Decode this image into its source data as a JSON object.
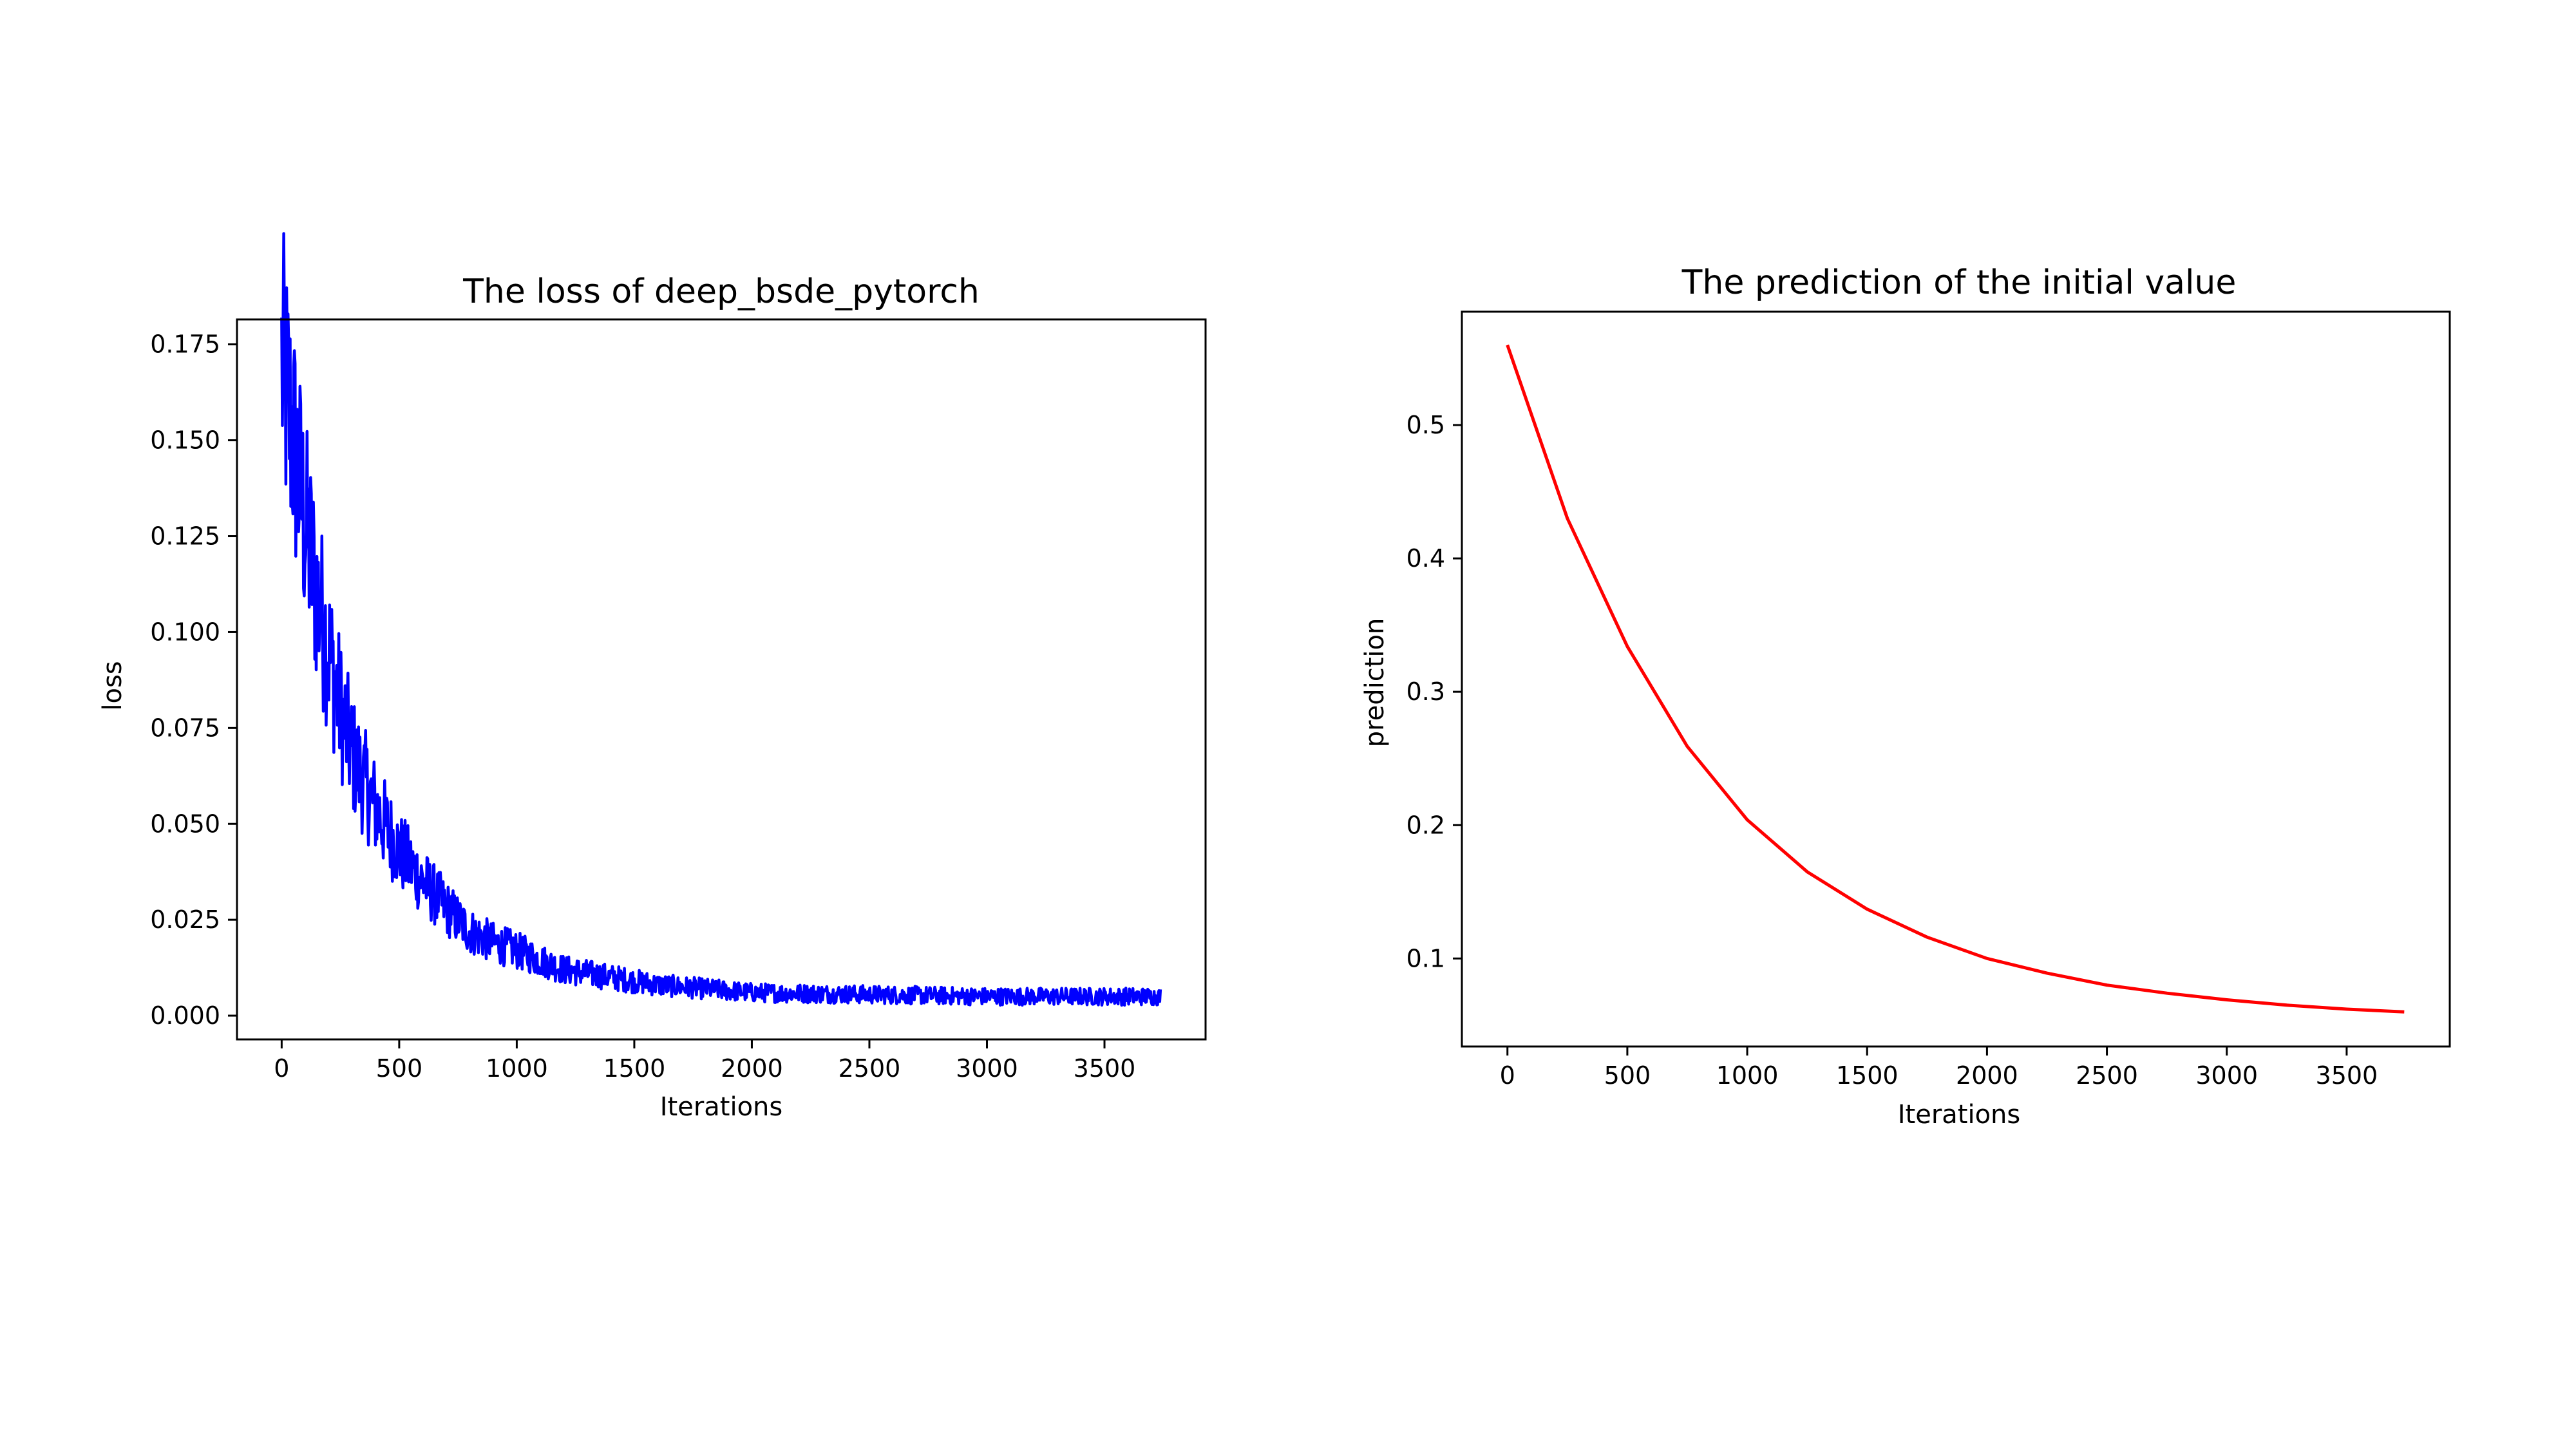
{
  "chart_data": [
    {
      "type": "line",
      "title": "The loss of deep_bsde_pytorch",
      "xlabel": "Iterations",
      "ylabel": "loss",
      "xlim": [
        -190,
        3930
      ],
      "ylim": [
        -0.0062,
        0.1815
      ],
      "xticks": [
        0,
        500,
        1000,
        1500,
        2000,
        2500,
        3000,
        3500
      ],
      "xtick_labels": [
        "0",
        "500",
        "1000",
        "1500",
        "2000",
        "2500",
        "3000",
        "3500"
      ],
      "yticks": [
        0.0,
        0.025,
        0.05,
        0.075,
        0.1,
        0.125,
        0.15,
        0.175
      ],
      "ytick_labels": [
        "0.000",
        "0.025",
        "0.050",
        "0.075",
        "0.100",
        "0.125",
        "0.150",
        "0.175"
      ],
      "grid": false,
      "series": [
        {
          "color": "#0000ff",
          "x": [
            0,
            50,
            100,
            150,
            200,
            250,
            300,
            400,
            500,
            600,
            700,
            800,
            900,
            1000,
            1200,
            1400,
            1600,
            1800,
            2000,
            2500,
            3000,
            3500,
            3740
          ],
          "y": [
            0.17,
            0.15,
            0.128,
            0.11,
            0.095,
            0.08,
            0.068,
            0.054,
            0.043,
            0.035,
            0.028,
            0.022,
            0.019,
            0.017,
            0.012,
            0.01,
            0.008,
            0.007,
            0.006,
            0.0055,
            0.005,
            0.005,
            0.005
          ]
        }
      ]
    },
    {
      "type": "line",
      "title": "The prediction of the initial value",
      "xlabel": "Iterations",
      "ylabel": "prediction",
      "xlim": [
        -190,
        3930
      ],
      "ylim": [
        0.034,
        0.585
      ],
      "xticks": [
        0,
        500,
        1000,
        1500,
        2000,
        2500,
        3000,
        3500
      ],
      "xtick_labels": [
        "0",
        "500",
        "1000",
        "1500",
        "2000",
        "2500",
        "3000",
        "3500"
      ],
      "yticks": [
        0.1,
        0.2,
        0.3,
        0.4,
        0.5
      ],
      "ytick_labels": [
        "0.1",
        "0.2",
        "0.3",
        "0.4",
        "0.5"
      ],
      "grid": false,
      "series": [
        {
          "color": "#ff0000",
          "x": [
            0,
            250,
            500,
            750,
            1000,
            1250,
            1500,
            1750,
            2000,
            2250,
            2500,
            2750,
            3000,
            3250,
            3500,
            3740
          ],
          "y": [
            0.56,
            0.43,
            0.334,
            0.259,
            0.204,
            0.165,
            0.137,
            0.116,
            0.1,
            0.089,
            0.08,
            0.074,
            0.069,
            0.065,
            0.062,
            0.06
          ]
        }
      ]
    }
  ]
}
